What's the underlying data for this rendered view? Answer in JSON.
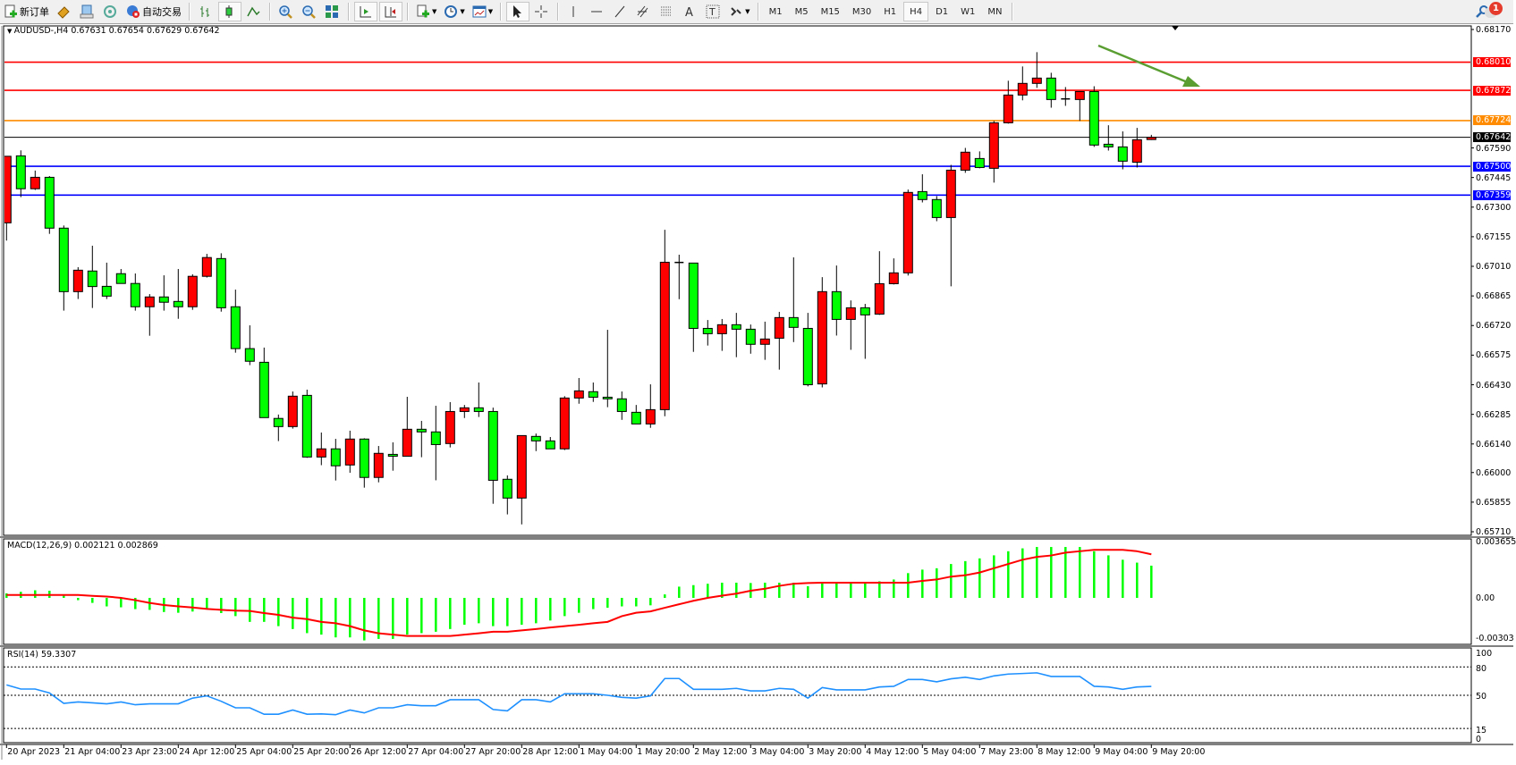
{
  "toolbar": {
    "new_order_label": "新订单",
    "auto_trading_label": "自动交易",
    "timeframes": [
      "M1",
      "M5",
      "M15",
      "M30",
      "H1",
      "H4",
      "D1",
      "W1",
      "MN"
    ],
    "active_timeframe": "H4",
    "notification_count": "1",
    "icons": [
      "new-order-icon",
      "gold-icon",
      "terminal-icon",
      "signals-icon",
      "auto-trading-icon",
      "bar-chart-icon",
      "candlestick-icon",
      "line-chart-icon",
      "zoom-in-icon",
      "zoom-out-icon",
      "tile-windows-icon",
      "auto-scroll-icon",
      "chart-shift-icon",
      "indicators-icon",
      "periods-icon",
      "templates-icon",
      "cursor-icon",
      "crosshair-icon",
      "vertical-line-icon",
      "horizontal-line-icon",
      "trendline-icon",
      "equidistant-channel-icon",
      "fibonacci-icon",
      "text-icon",
      "text-label-icon",
      "arrows-icon",
      "search-icon",
      "notification-icon"
    ]
  },
  "chart": {
    "header": "AUDUSD-,H4  0.67631 0.67654 0.67629 0.67642",
    "price_axis": [
      "0.68170",
      "0.67590",
      "0.67445",
      "0.67300",
      "0.67155",
      "0.67010",
      "0.66865",
      "0.66720",
      "0.66575",
      "0.66430",
      "0.66285",
      "0.66140",
      "0.66000",
      "0.65855",
      "0.65710"
    ],
    "levels": [
      {
        "price": "0.68010",
        "color": "#ff0000"
      },
      {
        "price": "0.67872",
        "color": "#ff0000"
      },
      {
        "price": "0.67724",
        "color": "#ff8c00"
      },
      {
        "price": "0.67642",
        "color": "#000000"
      },
      {
        "price": "0.67500",
        "color": "#0000ff"
      },
      {
        "price": "0.67359",
        "color": "#0000ff"
      }
    ],
    "colors": {
      "up": "#ff0000",
      "down": "#00ff00",
      "macd_hist": "#00ff00",
      "macd_signal": "#ff0000",
      "rsi": "#1e90ff",
      "arrow": "#5a9e32"
    }
  },
  "chart_data": {
    "type": "candlestick",
    "symbol": "AUDUSD-",
    "timeframe": "H4",
    "ylim": [
      0.6571,
      0.6817
    ],
    "time_labels": [
      "20 Apr 2023",
      "21 Apr 04:00",
      "23 Apr 23:00",
      "24 Apr 12:00",
      "25 Apr 04:00",
      "25 Apr 20:00",
      "26 Apr 12:00",
      "27 Apr 04:00",
      "27 Apr 20:00",
      "28 Apr 12:00",
      "1 May 04:00",
      "1 May 20:00",
      "2 May 12:00",
      "3 May 04:00",
      "3 May 20:00",
      "4 May 12:00",
      "5 May 04:00",
      "7 May 23:00",
      "8 May 12:00",
      "9 May 04:00",
      "9 May 20:00"
    ],
    "ohlc": [
      [
        0.67223,
        0.67549,
        0.67136,
        0.67549
      ],
      [
        0.67551,
        0.67578,
        0.67349,
        0.6739
      ],
      [
        0.6739,
        0.67479,
        0.67384,
        0.67446
      ],
      [
        0.67446,
        0.67452,
        0.67169,
        0.67197
      ],
      [
        0.67197,
        0.6721,
        0.66793,
        0.66886
      ],
      [
        0.66886,
        0.67006,
        0.6685,
        0.66991
      ],
      [
        0.66987,
        0.67111,
        0.66806,
        0.66911
      ],
      [
        0.66912,
        0.67028,
        0.6685,
        0.66864
      ],
      [
        0.66974,
        0.66997,
        0.66926,
        0.66926
      ],
      [
        0.66926,
        0.66975,
        0.66793,
        0.66812
      ],
      [
        0.66812,
        0.66874,
        0.6667,
        0.6686
      ],
      [
        0.6686,
        0.66966,
        0.66793,
        0.66834
      ],
      [
        0.66838,
        0.66997,
        0.66753,
        0.66812
      ],
      [
        0.66812,
        0.66971,
        0.66797,
        0.66961
      ],
      [
        0.66961,
        0.67071,
        0.66955,
        0.67053
      ],
      [
        0.67048,
        0.67074,
        0.66788,
        0.66807
      ],
      [
        0.66812,
        0.66896,
        0.66587,
        0.66607
      ],
      [
        0.66607,
        0.66721,
        0.66526,
        0.66545
      ],
      [
        0.6654,
        0.66612,
        0.66269,
        0.66269
      ],
      [
        0.66265,
        0.66284,
        0.66154,
        0.66225
      ],
      [
        0.66225,
        0.66397,
        0.66215,
        0.66374
      ],
      [
        0.66378,
        0.66406,
        0.66072,
        0.66076
      ],
      [
        0.66076,
        0.66196,
        0.66036,
        0.66116
      ],
      [
        0.66116,
        0.66165,
        0.65961,
        0.66033
      ],
      [
        0.66037,
        0.66205,
        0.65999,
        0.66164
      ],
      [
        0.66164,
        0.66168,
        0.65926,
        0.65976
      ],
      [
        0.65976,
        0.6613,
        0.65952,
        0.66094
      ],
      [
        0.66089,
        0.66148,
        0.66009,
        0.6608
      ],
      [
        0.6608,
        0.66371,
        0.6608,
        0.66212
      ],
      [
        0.66212,
        0.66253,
        0.66075,
        0.66199
      ],
      [
        0.66199,
        0.66327,
        0.65962,
        0.66137
      ],
      [
        0.66142,
        0.66345,
        0.66123,
        0.66299
      ],
      [
        0.66299,
        0.66331,
        0.66267,
        0.66317
      ],
      [
        0.66317,
        0.66441,
        0.66272,
        0.66299
      ],
      [
        0.66299,
        0.66318,
        0.65847,
        0.65962
      ],
      [
        0.65967,
        0.65986,
        0.65795,
        0.65875
      ],
      [
        0.65875,
        0.66181,
        0.65746,
        0.66181
      ],
      [
        0.66177,
        0.66191,
        0.66105,
        0.66155
      ],
      [
        0.66155,
        0.66174,
        0.66116,
        0.66116
      ],
      [
        0.66116,
        0.66374,
        0.6611,
        0.66365
      ],
      [
        0.66365,
        0.66463,
        0.66337,
        0.664
      ],
      [
        0.66396,
        0.66441,
        0.66346,
        0.66369
      ],
      [
        0.66369,
        0.66699,
        0.6632,
        0.66361
      ],
      [
        0.66361,
        0.66397,
        0.66258,
        0.66299
      ],
      [
        0.66295,
        0.66331,
        0.66238,
        0.66238
      ],
      [
        0.66238,
        0.66432,
        0.66219,
        0.66308
      ],
      [
        0.66308,
        0.67189,
        0.66276,
        0.6703
      ],
      [
        0.67029,
        0.67067,
        0.66849,
        0.67029
      ],
      [
        0.67026,
        0.67026,
        0.66591,
        0.66706
      ],
      [
        0.66706,
        0.66747,
        0.66622,
        0.6668
      ],
      [
        0.6668,
        0.66752,
        0.66596,
        0.66724
      ],
      [
        0.66724,
        0.66782,
        0.66565,
        0.66702
      ],
      [
        0.66702,
        0.66725,
        0.66582,
        0.66628
      ],
      [
        0.66628,
        0.66739,
        0.66552,
        0.66654
      ],
      [
        0.66658,
        0.66787,
        0.66504,
        0.66759
      ],
      [
        0.66759,
        0.67054,
        0.66639,
        0.66711
      ],
      [
        0.66706,
        0.66782,
        0.66422,
        0.6643
      ],
      [
        0.66434,
        0.66957,
        0.66417,
        0.66886
      ],
      [
        0.66886,
        0.67014,
        0.66671,
        0.6675
      ],
      [
        0.6675,
        0.66843,
        0.66601,
        0.66807
      ],
      [
        0.66807,
        0.66826,
        0.66557,
        0.66772
      ],
      [
        0.66776,
        0.67084,
        0.66772,
        0.66925
      ],
      [
        0.66925,
        0.67049,
        0.66921,
        0.66978
      ],
      [
        0.66978,
        0.67386,
        0.66965,
        0.67372
      ],
      [
        0.67376,
        0.67461,
        0.67323,
        0.67337
      ],
      [
        0.67337,
        0.67354,
        0.67231,
        0.67249
      ],
      [
        0.67249,
        0.67507,
        0.66912,
        0.67481
      ],
      [
        0.67481,
        0.6759,
        0.67468,
        0.67569
      ],
      [
        0.67538,
        0.67573,
        0.6749,
        0.67494
      ],
      [
        0.6749,
        0.67722,
        0.6742,
        0.67713
      ],
      [
        0.67713,
        0.67919,
        0.67709,
        0.67849
      ],
      [
        0.67849,
        0.67989,
        0.67823,
        0.67906
      ],
      [
        0.67906,
        0.68059,
        0.67884,
        0.67932
      ],
      [
        0.67932,
        0.67958,
        0.67787,
        0.67827
      ],
      [
        0.6783,
        0.67888,
        0.67796,
        0.6783
      ],
      [
        0.67827,
        0.67866,
        0.67722,
        0.67866
      ],
      [
        0.67866,
        0.67892,
        0.67595,
        0.67604
      ],
      [
        0.67608,
        0.67701,
        0.67577,
        0.67595
      ],
      [
        0.67595,
        0.67671,
        0.67485,
        0.67525
      ],
      [
        0.6752,
        0.67688,
        0.67494,
        0.6763
      ],
      [
        0.67631,
        0.67654,
        0.67629,
        0.67642
      ]
    ],
    "macd": {
      "label": "MACD(12,26,9) 0.002121 0.002869",
      "axis": [
        "0.003655",
        "0.00",
        "-0.00303"
      ],
      "ylim": [
        -0.00303,
        0.003655
      ],
      "histogram": [
        0.0003,
        0.0004,
        0.0005,
        0.00047,
        0.0002,
        -0.00015,
        -0.00033,
        -0.00056,
        -0.00062,
        -0.00074,
        -0.00079,
        -0.00093,
        -0.00098,
        -0.0009,
        -0.00074,
        -0.001,
        -0.0012,
        -0.00158,
        -0.00158,
        -0.00186,
        -0.00205,
        -0.00232,
        -0.00242,
        -0.0026,
        -0.0026,
        -0.0028,
        -0.0027,
        -0.0027,
        -0.00242,
        -0.00232,
        -0.00223,
        -0.00205,
        -0.00177,
        -0.00167,
        -0.00186,
        -0.00186,
        -0.00177,
        -0.00167,
        -0.00149,
        -0.0012,
        -0.00098,
        -0.00074,
        -0.00065,
        -0.00056,
        -0.00056,
        -0.00049,
        0.00023,
        0.00074,
        0.00084,
        0.00093,
        0.001,
        0.001,
        0.00098,
        0.001,
        0.001,
        0.001,
        0.00077,
        0.001,
        0.001,
        0.001,
        0.00105,
        0.00109,
        0.00121,
        0.00163,
        0.00186,
        0.00195,
        0.00223,
        0.00242,
        0.0026,
        0.0028,
        0.00307,
        0.00326,
        0.00335,
        0.00335,
        0.00335,
        0.00335,
        0.00307,
        0.0028,
        0.00251,
        0.00232,
        0.002121
      ],
      "signal": [
        0.00019,
        0.00019,
        0.00019,
        0.00019,
        0.00019,
        0.00019,
        0.00013,
        9e-05,
        0,
        -0.00015,
        -0.00033,
        -0.00047,
        -0.00056,
        -0.00063,
        -0.00073,
        -0.00079,
        -0.00084,
        -0.00086,
        -0.001,
        -0.00112,
        -0.0013,
        -0.0014,
        -0.00158,
        -0.00167,
        -0.00186,
        -0.00214,
        -0.00233,
        -0.00242,
        -0.00251,
        -0.00251,
        -0.00251,
        -0.00251,
        -0.00242,
        -0.00233,
        -0.00223,
        -0.00223,
        -0.00214,
        -0.00205,
        -0.00195,
        -0.00186,
        -0.00177,
        -0.00167,
        -0.00158,
        -0.0012,
        -0.00098,
        -0.00089,
        -0.00065,
        -0.00042,
        -0.00019,
        0,
        0.00015,
        0.00028,
        0.00047,
        0.0006,
        0.00079,
        0.00093,
        0.00098,
        0.001,
        0.001,
        0.001,
        0.001,
        0.001,
        0.001,
        0.001,
        0.00112,
        0.00121,
        0.0014,
        0.00149,
        0.00167,
        0.00195,
        0.00223,
        0.00251,
        0.0027,
        0.00279,
        0.00298,
        0.00307,
        0.00316,
        0.00316,
        0.00316,
        0.00307,
        0.002869
      ]
    },
    "rsi": {
      "label": "RSI(14) 59.3307",
      "axis": [
        "100",
        "80",
        "50",
        "15",
        "0"
      ],
      "levels": [
        80,
        50,
        15
      ],
      "ylim": [
        0,
        100
      ],
      "values": [
        61,
        56.6,
        56.6,
        52.5,
        41.5,
        43,
        42,
        41,
        43,
        40,
        41,
        41,
        41,
        47,
        49.4,
        43.7,
        36.8,
        36.8,
        30,
        30,
        34.5,
        30,
        30.4,
        29.5,
        34.5,
        31.4,
        36.8,
        36.8,
        40,
        39,
        39,
        45.3,
        45.3,
        45.3,
        35,
        33.6,
        45.3,
        45.3,
        43,
        51.6,
        51.6,
        51.6,
        50,
        47.8,
        47,
        49.4,
        67.7,
        67.7,
        56.3,
        56.3,
        56.3,
        57.3,
        54.7,
        54.7,
        57.3,
        56.3,
        47,
        58.2,
        55.7,
        55.7,
        55.7,
        58.8,
        59.5,
        66.7,
        66.7,
        64.2,
        67.4,
        69,
        66.7,
        70.5,
        72.4,
        73,
        73.7,
        69.9,
        69.9,
        69.9,
        59.5,
        58.8,
        56.3,
        58.8,
        59.3307
      ]
    }
  }
}
